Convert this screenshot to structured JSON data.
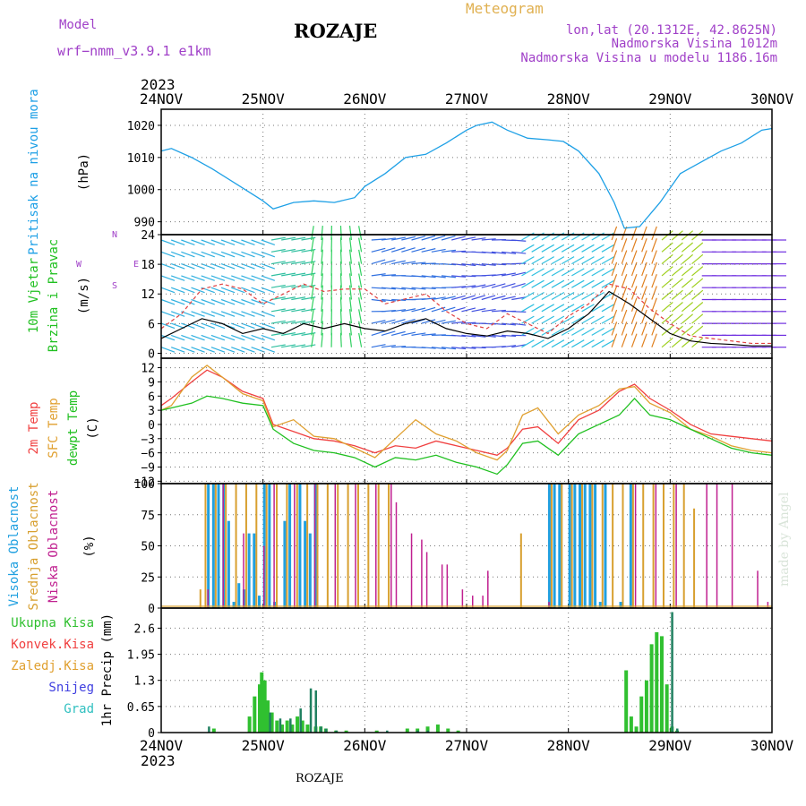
{
  "header": {
    "station": "ROZAJE",
    "model_label": "Model",
    "model_name": "wrf−nmm_v3.9.1  e1km",
    "meteogram_label": "Meteogram",
    "lonlat": "lon,lat (20.1312E, 42.8625N)",
    "elevation": "Nadmorska Visina 1012m",
    "elevation_model": "Nadmorska Visina u modelu 1186.16m"
  },
  "footer": {
    "station": "ROZAJE",
    "watermark": "made by Angel"
  },
  "colors": {
    "pressure": "#1ea0e6",
    "temp2m": "#f04040",
    "sfc": "#e0a030",
    "dewpt": "#20c020",
    "high_cloud": "#20a0e0",
    "mid_cloud": "#d8a030",
    "low_cloud": "#c02090",
    "total_precip": "#30c030",
    "conv_precip": "#f04040",
    "snow": "#4040e0",
    "grad": "#30c0c0"
  },
  "chart_data": [
    {
      "id": "pressure",
      "type": "line",
      "top_year": "2023",
      "x_ticks": [
        "24NOV",
        "25NOV",
        "26NOV",
        "27NOV",
        "28NOV",
        "29NOV",
        "30NOV"
      ],
      "ylabel_left": "Pritisak na nivou mora",
      "ylabel_unit": "(hPa)",
      "y_ticks": [
        "990",
        "1000",
        "1010",
        "1020"
      ],
      "ylim": [
        986,
        1025
      ],
      "grid": true,
      "series": [
        {
          "x": [
            0,
            0.1,
            0.3,
            0.5,
            0.75,
            1.0,
            1.1,
            1.3,
            1.5,
            1.7,
            1.9,
            2.0,
            2.2,
            2.4,
            2.6,
            2.8,
            3.0,
            3.1,
            3.25,
            3.4,
            3.6,
            3.8,
            3.95,
            4.1,
            4.3,
            4.45,
            4.55,
            4.7,
            4.9,
            5.1,
            5.3,
            5.5,
            5.7,
            5.9,
            6.0
          ],
          "values": [
            1012,
            1012.8,
            1010,
            1006.5,
            1001.5,
            996.5,
            994,
            996,
            996.5,
            996,
            997.5,
            1001,
            1005,
            1010,
            1011,
            1014.5,
            1018.5,
            1020,
            1021,
            1018.5,
            1016,
            1015.5,
            1015,
            1012,
            1005,
            996,
            988,
            988.5,
            996,
            1005,
            1008.5,
            1012,
            1014.5,
            1018.5,
            1019
          ]
        }
      ]
    },
    {
      "id": "wind",
      "type": "line",
      "ylabel_left_1": "10m Vjetar",
      "ylabel_left_2": "Brzina i Pravac",
      "ylabel_unit": "(m/s)",
      "compass_top": "N",
      "compass_left": "W",
      "compass_right": "E",
      "compass_bottom": "S",
      "y_ticks": [
        "0",
        "6",
        "12",
        "18",
        "24"
      ],
      "ylim": [
        -1,
        24
      ],
      "grid": true,
      "series": [
        {
          "name": "gust",
          "x": [
            0,
            0.2,
            0.4,
            0.6,
            0.8,
            1.0,
            1.2,
            1.4,
            1.6,
            1.8,
            2.0,
            2.2,
            2.4,
            2.6,
            2.8,
            3.0,
            3.2,
            3.4,
            3.6,
            3.8,
            4.0,
            4.2,
            4.4,
            4.6,
            4.8,
            5.0,
            5.2,
            5.4,
            5.6,
            5.8,
            6.0
          ],
          "values": [
            5,
            8,
            13,
            14,
            13,
            10,
            12,
            14,
            12.5,
            13,
            13,
            10,
            11,
            12,
            8.5,
            6,
            5,
            8,
            6,
            4,
            7.5,
            10,
            14,
            13,
            9,
            6,
            3.5,
            3,
            2.5,
            2,
            2
          ]
        },
        {
          "name": "speed",
          "x": [
            0,
            0.2,
            0.4,
            0.6,
            0.8,
            1.0,
            1.2,
            1.4,
            1.6,
            1.8,
            2.0,
            2.2,
            2.4,
            2.6,
            2.8,
            3.0,
            3.2,
            3.4,
            3.6,
            3.8,
            4.0,
            4.2,
            4.4,
            4.6,
            4.8,
            5.0,
            5.2,
            5.4,
            5.6,
            5.8,
            6.0
          ],
          "values": [
            3,
            5,
            7,
            6,
            4,
            5,
            4,
            6,
            5,
            6,
            5,
            4.5,
            6,
            7,
            5,
            4,
            3.5,
            4.5,
            4,
            3,
            5,
            8,
            12.5,
            10,
            7,
            4,
            2.5,
            2,
            1.8,
            1.5,
            1.5
          ]
        }
      ]
    },
    {
      "id": "temperature",
      "type": "line",
      "ylabel_left_1": "2m Temp",
      "ylabel_left_2": "SFC Temp",
      "ylabel_left_3": "dewpt Temp",
      "ylabel_unit": "(C)",
      "y_ticks": [
        "−12",
        "−9",
        "−6",
        "−3",
        "0",
        "3",
        "6",
        "9",
        "12"
      ],
      "ylim": [
        -12.5,
        14
      ],
      "grid": true,
      "series": [
        {
          "name": "2m Temp",
          "x": [
            0,
            0.1,
            0.3,
            0.45,
            0.6,
            0.8,
            1.0,
            1.1,
            1.3,
            1.5,
            1.7,
            1.9,
            2.1,
            2.3,
            2.5,
            2.7,
            2.9,
            3.1,
            3.3,
            3.4,
            3.55,
            3.7,
            3.9,
            4.1,
            4.3,
            4.5,
            4.65,
            4.8,
            5.0,
            5.2,
            5.4,
            5.6,
            5.8,
            6.0
          ],
          "values": [
            4,
            5.5,
            9,
            11.5,
            10,
            7,
            5.5,
            0,
            -1.5,
            -3,
            -3.5,
            -4.5,
            -6,
            -4.5,
            -5,
            -3.5,
            -4.5,
            -5.5,
            -6.5,
            -5,
            -1,
            -0.5,
            -4,
            1,
            3,
            7,
            8.5,
            5.5,
            3,
            0,
            -2,
            -2.5,
            -3,
            -3.5
          ]
        },
        {
          "name": "SFC Temp",
          "x": [
            0,
            0.1,
            0.3,
            0.45,
            0.6,
            0.8,
            1.0,
            1.1,
            1.3,
            1.5,
            1.7,
            1.9,
            2.1,
            2.3,
            2.5,
            2.7,
            2.9,
            3.1,
            3.3,
            3.4,
            3.55,
            3.7,
            3.9,
            4.1,
            4.3,
            4.5,
            4.65,
            4.8,
            5.0,
            5.2,
            5.4,
            5.6,
            5.8,
            6.0
          ],
          "values": [
            3,
            4,
            10,
            12.5,
            10,
            6.5,
            5,
            -0.5,
            1,
            -2.5,
            -3,
            -5,
            -7,
            -3,
            1,
            -2,
            -3.5,
            -6,
            -7.5,
            -5.5,
            2,
            3.5,
            -2,
            2,
            4,
            7.5,
            8,
            4.5,
            2.5,
            -1,
            -2.5,
            -4.5,
            -5.5,
            -6
          ]
        },
        {
          "name": "dewpt Temp",
          "x": [
            0,
            0.1,
            0.3,
            0.45,
            0.6,
            0.8,
            1.0,
            1.1,
            1.3,
            1.5,
            1.7,
            1.9,
            2.1,
            2.3,
            2.5,
            2.7,
            2.9,
            3.1,
            3.3,
            3.4,
            3.55,
            3.7,
            3.9,
            4.1,
            4.3,
            4.5,
            4.65,
            4.8,
            5.0,
            5.2,
            5.4,
            5.6,
            5.8,
            6.0
          ],
          "values": [
            3,
            3.5,
            4.5,
            6,
            5.5,
            4.5,
            4,
            -1,
            -4,
            -5.5,
            -6,
            -7,
            -9,
            -7,
            -7.5,
            -6.5,
            -8,
            -9,
            -10.5,
            -8.5,
            -4,
            -3.5,
            -6.5,
            -2,
            0,
            2,
            5.5,
            2,
            1,
            -1,
            -3,
            -5,
            -6,
            -6.5
          ]
        }
      ]
    },
    {
      "id": "cloud",
      "type": "bar",
      "ylabel_left_1": "Visoka Oblacnost",
      "ylabel_left_2": "Srednja Oblacnost",
      "ylabel_left_3": "Niska Oblacnost",
      "ylabel_unit": "(%)",
      "y_ticks": [
        "0",
        "25",
        "50",
        "75",
        "100"
      ],
      "ylim": [
        0,
        100
      ],
      "grid": true,
      "series": [
        {
          "name": "Visoka Oblacnost",
          "x": [
            0.45,
            0.5,
            0.55,
            0.6,
            0.65,
            0.7,
            0.75,
            0.8,
            0.85,
            0.9,
            0.95,
            1.0,
            1.05,
            1.1,
            1.15,
            1.2,
            1.25,
            1.3,
            1.35,
            1.4,
            1.45,
            1.5,
            3.8,
            3.85,
            3.9,
            4.0,
            4.05,
            4.1,
            4.15,
            4.2,
            4.25,
            4.3,
            4.35,
            4.5,
            4.6
          ],
          "values": [
            100,
            100,
            100,
            100,
            70,
            5,
            20,
            15,
            60,
            60,
            10,
            100,
            100,
            5,
            0,
            70,
            100,
            0,
            100,
            70,
            60,
            100,
            100,
            100,
            100,
            100,
            100,
            100,
            100,
            100,
            100,
            5,
            100,
            5,
            100
          ]
        },
        {
          "name": "Srednja Oblacnost",
          "x": [
            0.35,
            0.4,
            0.5,
            0.6,
            0.7,
            0.8,
            0.9,
            1.0,
            1.1,
            1.2,
            1.3,
            1.4,
            1.5,
            1.6,
            1.7,
            1.8,
            1.9,
            2.0,
            2.1,
            2.2,
            3.5,
            3.8,
            3.9,
            4.0,
            4.1,
            4.2,
            4.3,
            4.4,
            4.5,
            4.6,
            4.7,
            4.8,
            4.9,
            5.0,
            5.1,
            5.2
          ],
          "values": [
            15,
            100,
            100,
            100,
            100,
            100,
            100,
            100,
            100,
            100,
            100,
            100,
            100,
            100,
            100,
            100,
            100,
            100,
            100,
            100,
            60,
            100,
            100,
            100,
            100,
            100,
            100,
            100,
            100,
            100,
            100,
            100,
            100,
            100,
            100,
            80
          ]
        },
        {
          "name": "Niska Oblacnost",
          "x": [
            0.4,
            0.55,
            0.75,
            0.95,
            1.05,
            1.25,
            1.45,
            1.65,
            1.85,
            2.05,
            2.2,
            2.25,
            2.4,
            2.5,
            2.55,
            2.7,
            2.75,
            2.9,
            3.0,
            3.1,
            3.15,
            3.75,
            4.6,
            4.8,
            5.0,
            5.3,
            5.4,
            5.55,
            5.8,
            5.9
          ],
          "values": [
            15,
            100,
            60,
            50,
            100,
            100,
            100,
            100,
            100,
            100,
            100,
            85,
            60,
            55,
            45,
            35,
            35,
            15,
            10,
            10,
            30,
            5,
            100,
            100,
            100,
            100,
            100,
            100,
            30,
            5
          ]
        }
      ]
    },
    {
      "id": "precip",
      "type": "bar",
      "bottom_year": "2023",
      "x_ticks": [
        "24NOV",
        "25NOV",
        "26NOV",
        "27NOV",
        "28NOV",
        "29NOV",
        "30NOV"
      ],
      "ylabel_unit": "1hr Precip (mm)",
      "y_ticks": [
        "0",
        "0.65",
        "1.3",
        "1.95",
        "2.6"
      ],
      "ylim": [
        0,
        3.1
      ],
      "grid": true,
      "legend": [
        "Ukupna Kisa",
        "Konvek.Kisa",
        "Zaledj.Kisa",
        "Snijeg",
        "Grad"
      ],
      "series": [
        {
          "name": "Ukupna Kisa",
          "x": [
            0.5,
            0.85,
            0.9,
            0.95,
            0.97,
            1.0,
            1.03,
            1.07,
            1.12,
            1.17,
            1.22,
            1.27,
            1.32,
            1.37,
            1.42,
            1.5,
            1.55,
            1.6,
            1.7,
            1.8,
            2.1,
            2.4,
            2.5,
            2.6,
            2.7,
            2.8,
            2.9,
            4.55,
            4.6,
            4.65,
            4.7,
            4.75,
            4.8,
            4.85,
            4.9,
            4.95,
            5.0,
            5.05
          ],
          "values": [
            0.1,
            0.4,
            0.9,
            1.2,
            1.5,
            1.3,
            0.8,
            0.5,
            0.3,
            0.2,
            0.3,
            0.2,
            0.4,
            0.3,
            0.2,
            0.15,
            0.15,
            0.1,
            0.05,
            0.05,
            0.05,
            0.1,
            0.1,
            0.15,
            0.2,
            0.1,
            0.05,
            1.55,
            0.4,
            0.15,
            0.9,
            1.3,
            2.2,
            2.5,
            2.4,
            1.2,
            0.15,
            0.05
          ]
        },
        {
          "name": "Snijeg",
          "x": [
            0.45,
            1.05,
            1.15,
            1.25,
            1.35,
            1.45,
            1.5,
            1.55,
            1.6,
            1.7,
            2.2,
            2.5,
            2.6,
            5.0,
            5.05
          ],
          "values": [
            0.15,
            0.5,
            0.35,
            0.35,
            0.6,
            1.1,
            1.05,
            0.15,
            0.1,
            0.05,
            0.05,
            0.05,
            0.05,
            3.0,
            0.1
          ]
        }
      ]
    }
  ]
}
